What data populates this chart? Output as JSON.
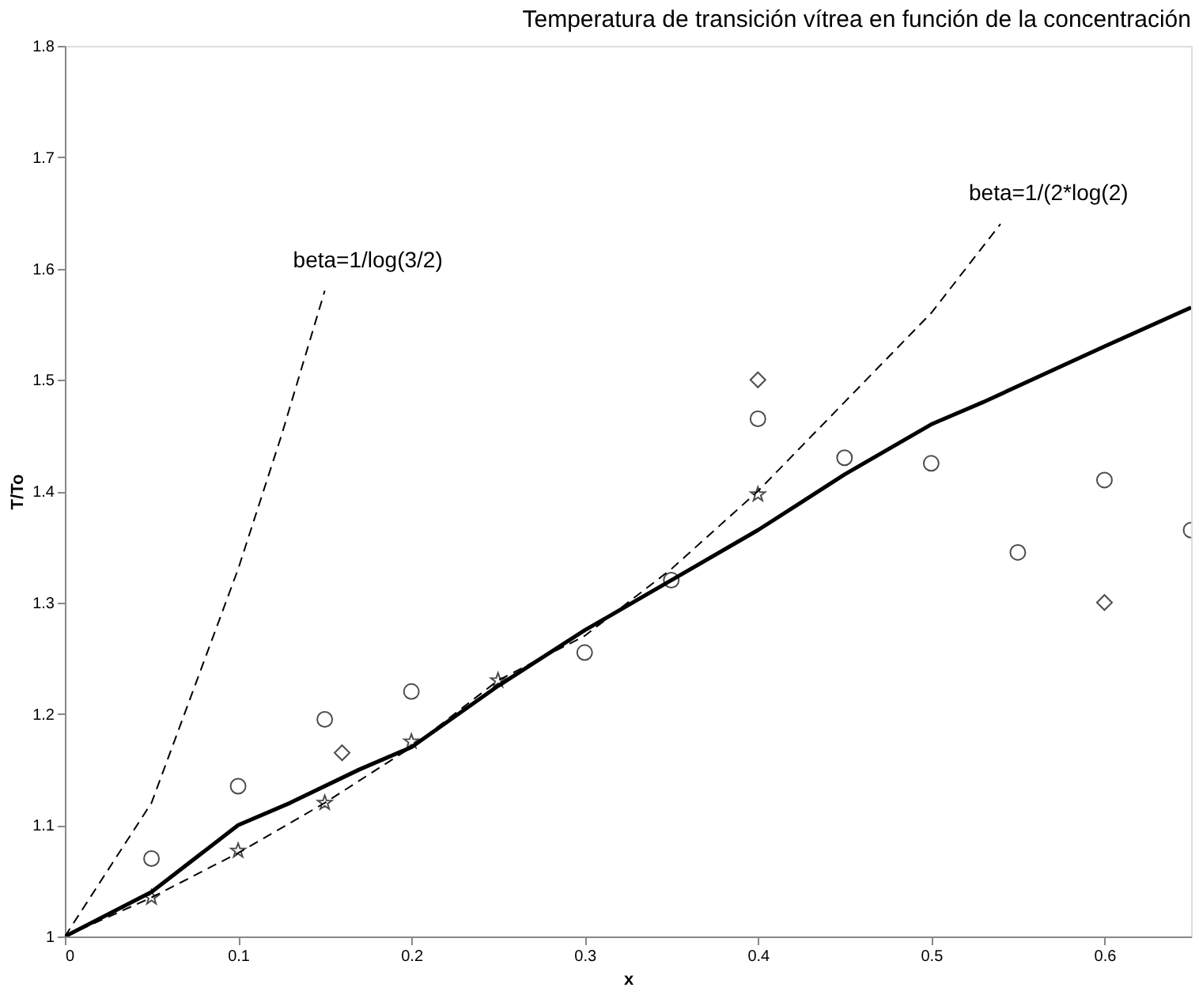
{
  "chart_data": {
    "type": "line",
    "title": "Temperatura de transición vítrea en función de la concentración",
    "xlabel": "x",
    "ylabel": "T/To",
    "xlim": [
      0,
      0.65
    ],
    "ylim": [
      1,
      1.8
    ],
    "xticks": [
      0,
      0.1,
      0.2,
      0.3,
      0.4,
      0.5,
      0.6
    ],
    "yticks": [
      1,
      1.1,
      1.2,
      1.3,
      1.4,
      1.5,
      1.6,
      1.7,
      1.8
    ],
    "grid": false,
    "series": [
      {
        "color": "#000000",
        "line_style": "solid",
        "marker": "none",
        "x": [
          0,
          0.05,
          0.1,
          0.13,
          0.17,
          0.2,
          0.25,
          0.3,
          0.35,
          0.4,
          0.45,
          0.5,
          0.53,
          0.6,
          0.65
        ],
        "values": [
          1.0,
          1.04,
          1.1,
          1.12,
          1.15,
          1.17,
          1.225,
          1.275,
          1.32,
          1.365,
          1.415,
          1.46,
          1.48,
          1.53,
          1.565
        ]
      },
      {
        "name": "beta=1/(2*log(2)",
        "color": "#000000",
        "line_style": "dashed",
        "marker": "none",
        "x": [
          0,
          0.05,
          0.1,
          0.15,
          0.2,
          0.25,
          0.3,
          0.35,
          0.4,
          0.45,
          0.5,
          0.54
        ],
        "values": [
          1.0,
          1.035,
          1.075,
          1.12,
          1.17,
          1.23,
          1.27,
          1.33,
          1.4,
          1.48,
          1.56,
          1.64
        ]
      },
      {
        "name": "beta=1/log(3/2)",
        "color": "#000000",
        "line_style": "dashed",
        "marker": "none",
        "x": [
          0,
          0.05,
          0.1,
          0.125,
          0.15
        ],
        "values": [
          1.0,
          1.12,
          1.33,
          1.45,
          1.58
        ]
      },
      {
        "type": "scatter",
        "color": "#000000",
        "marker": "star",
        "x": [
          0.05,
          0.1,
          0.15,
          0.2,
          0.25,
          0.4
        ],
        "values": [
          1.035,
          1.077,
          1.12,
          1.175,
          1.23,
          1.397
        ]
      },
      {
        "type": "scatter",
        "color": "#000000",
        "marker": "circle",
        "x": [
          0.05,
          0.1,
          0.15,
          0.2,
          0.3,
          0.35,
          0.4,
          0.45,
          0.5,
          0.55,
          0.6,
          0.65
        ],
        "values": [
          1.07,
          1.135,
          1.195,
          1.22,
          1.255,
          1.32,
          1.465,
          1.43,
          1.425,
          1.345,
          1.41,
          1.365
        ]
      },
      {
        "type": "scatter",
        "color": "#000000",
        "marker": "diamond",
        "x": [
          0.16,
          0.4,
          0.6
        ],
        "values": [
          1.165,
          1.5,
          1.3
        ]
      }
    ]
  }
}
